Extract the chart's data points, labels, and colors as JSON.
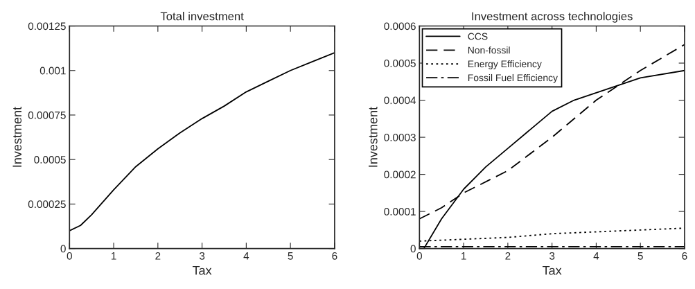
{
  "chart_data": [
    {
      "type": "line",
      "title": "Total investment",
      "xlabel": "Tax",
      "ylabel": "Investment",
      "xlim": [
        0,
        6
      ],
      "xticks": [
        0,
        1,
        2,
        3,
        4,
        5,
        6
      ],
      "ylim": [
        0,
        0.00125
      ],
      "yticks": [
        0,
        {
          "value": 0.00025,
          "label": "0.00025"
        },
        {
          "value": 0.0005,
          "label": "0.0005"
        },
        {
          "value": 0.00075,
          "label": "0.00075"
        },
        0.001,
        {
          "value": 0.00125,
          "label": "0.00125"
        }
      ],
      "grid": false,
      "legend": false,
      "series": [
        {
          "color": "#000000",
          "line_style": "solid",
          "x": [
            0,
            0.25,
            0.5,
            1,
            1.5,
            2,
            2.5,
            3,
            3.5,
            4,
            4.5,
            5,
            5.5,
            6
          ],
          "values": [
            0.0001,
            0.00013,
            0.00019,
            0.00033,
            0.00046,
            0.00056,
            0.00065,
            0.00073,
            0.0008,
            0.00088,
            0.00094,
            0.001,
            0.00105,
            0.0011
          ]
        }
      ]
    },
    {
      "type": "line",
      "title": "Investment across technologies",
      "xlabel": "Tax",
      "ylabel": "Investment",
      "xlim": [
        0,
        6
      ],
      "xticks": [
        0,
        1,
        2,
        3,
        4,
        5,
        6
      ],
      "ylim": [
        0,
        0.0006
      ],
      "yticks": [
        0,
        0.0001,
        0.0002,
        0.0003,
        0.0004,
        0.0005,
        0.0006
      ],
      "grid": false,
      "legend": "top left",
      "series": [
        {
          "name": "CCS",
          "color": "#000000",
          "line_style": "solid",
          "x": [
            0,
            0.1,
            0.5,
            1,
            1.5,
            2,
            2.5,
            3,
            3.5,
            4,
            4.5,
            5,
            6
          ],
          "values": [
            0,
            0,
            8e-05,
            0.00016,
            0.00022,
            0.00027,
            0.00032,
            0.00037,
            0.0004,
            0.00042,
            0.00044,
            0.00046,
            0.00048
          ]
        },
        {
          "name": "Non-fossil",
          "color": "#000000",
          "line_style": "dashed",
          "x": [
            0,
            0.5,
            1,
            2,
            3,
            4,
            5,
            6
          ],
          "values": [
            8e-05,
            0.00011,
            0.00015,
            0.00021,
            0.0003,
            0.0004,
            0.00048,
            0.00055
          ]
        },
        {
          "name": "Energy Efficiency",
          "color": "#000000",
          "line_style": "dotted",
          "x": [
            0,
            1,
            2,
            3,
            4,
            5,
            6
          ],
          "values": [
            2e-05,
            2.5e-05,
            3e-05,
            4e-05,
            4.5e-05,
            5e-05,
            5.5e-05
          ]
        },
        {
          "name": "Fossil Fuel Efficiency",
          "color": "#000000",
          "line_style": "dashdot",
          "x": [
            0,
            6
          ],
          "values": [
            5e-06,
            5e-06
          ]
        }
      ]
    }
  ]
}
